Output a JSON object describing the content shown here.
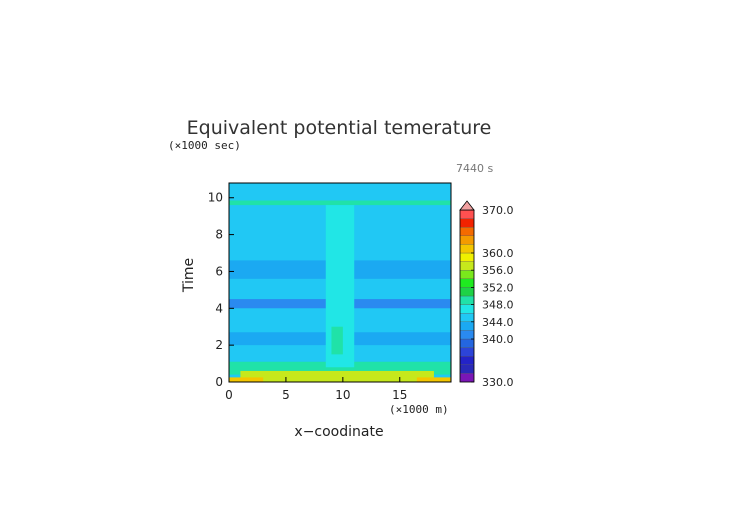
{
  "chart_data": {
    "type": "heatmap",
    "title": "Equivalent potential temerature",
    "xlabel": "x−coodinate",
    "ylabel": "Time",
    "x_unit": "(×1000 m)",
    "y_unit": "(×1000 sec)",
    "annotation": "7440 s",
    "xlim": [
      0,
      19.5
    ],
    "ylim": [
      0,
      10.8
    ],
    "xticks": [
      "0",
      "5",
      "10",
      "15"
    ],
    "yticks": [
      "0",
      "2",
      "4",
      "6",
      "8",
      "10"
    ],
    "colorbar": {
      "min": 330,
      "max": 370,
      "step": 2,
      "tick_labels": [
        "330.0",
        "340.0",
        "344.0",
        "348.0",
        "352.0",
        "356.0",
        "360.0",
        "370.0"
      ],
      "colors": [
        "#7a16b6",
        "#2929b8",
        "#2323c8",
        "#2c44d8",
        "#2466e0",
        "#2a8af0",
        "#1ba9f2",
        "#21c8f4",
        "#21e6e6",
        "#20e2a8",
        "#1ed246",
        "#1fea20",
        "#7ae81c",
        "#c6e81c",
        "#f0f000",
        "#f4c600",
        "#f49a00",
        "#f46a00",
        "#f22200",
        "#ff5050"
      ],
      "extend": "max"
    },
    "regions": [
      {
        "x": [
          0,
          19.5
        ],
        "y": [
          0,
          10.8
        ],
        "value": 344.5
      },
      {
        "x": [
          0,
          19.5
        ],
        "y": [
          4.0,
          4.5
        ],
        "value": 340
      },
      {
        "x": [
          0,
          19.5
        ],
        "y": [
          2.0,
          2.7
        ],
        "value": 343.5
      },
      {
        "x": [
          0,
          19.5
        ],
        "y": [
          5.6,
          6.6
        ],
        "value": 343.5
      },
      {
        "x": [
          0,
          19.5
        ],
        "y": [
          1.1,
          1.8
        ],
        "value": 345.5
      },
      {
        "x": [
          0,
          19.5
        ],
        "y": [
          0.4,
          1.1
        ],
        "value": 348
      },
      {
        "x": [
          0,
          19.5
        ],
        "y": [
          9.6,
          9.85
        ],
        "value": 348
      },
      {
        "x": [
          1,
          18
        ],
        "y": [
          0,
          0.6
        ],
        "value": 357
      },
      {
        "x": [
          0,
          3
        ],
        "y": [
          0,
          0.25
        ],
        "value": 361
      },
      {
        "x": [
          16.5,
          19.5
        ],
        "y": [
          0,
          0.25
        ],
        "value": 361
      },
      {
        "x": [
          8.5,
          11
        ],
        "y": [
          0.8,
          9.6
        ],
        "value": 346.5
      },
      {
        "x": [
          9,
          10
        ],
        "y": [
          1.5,
          3.0
        ],
        "value": 348
      }
    ]
  }
}
